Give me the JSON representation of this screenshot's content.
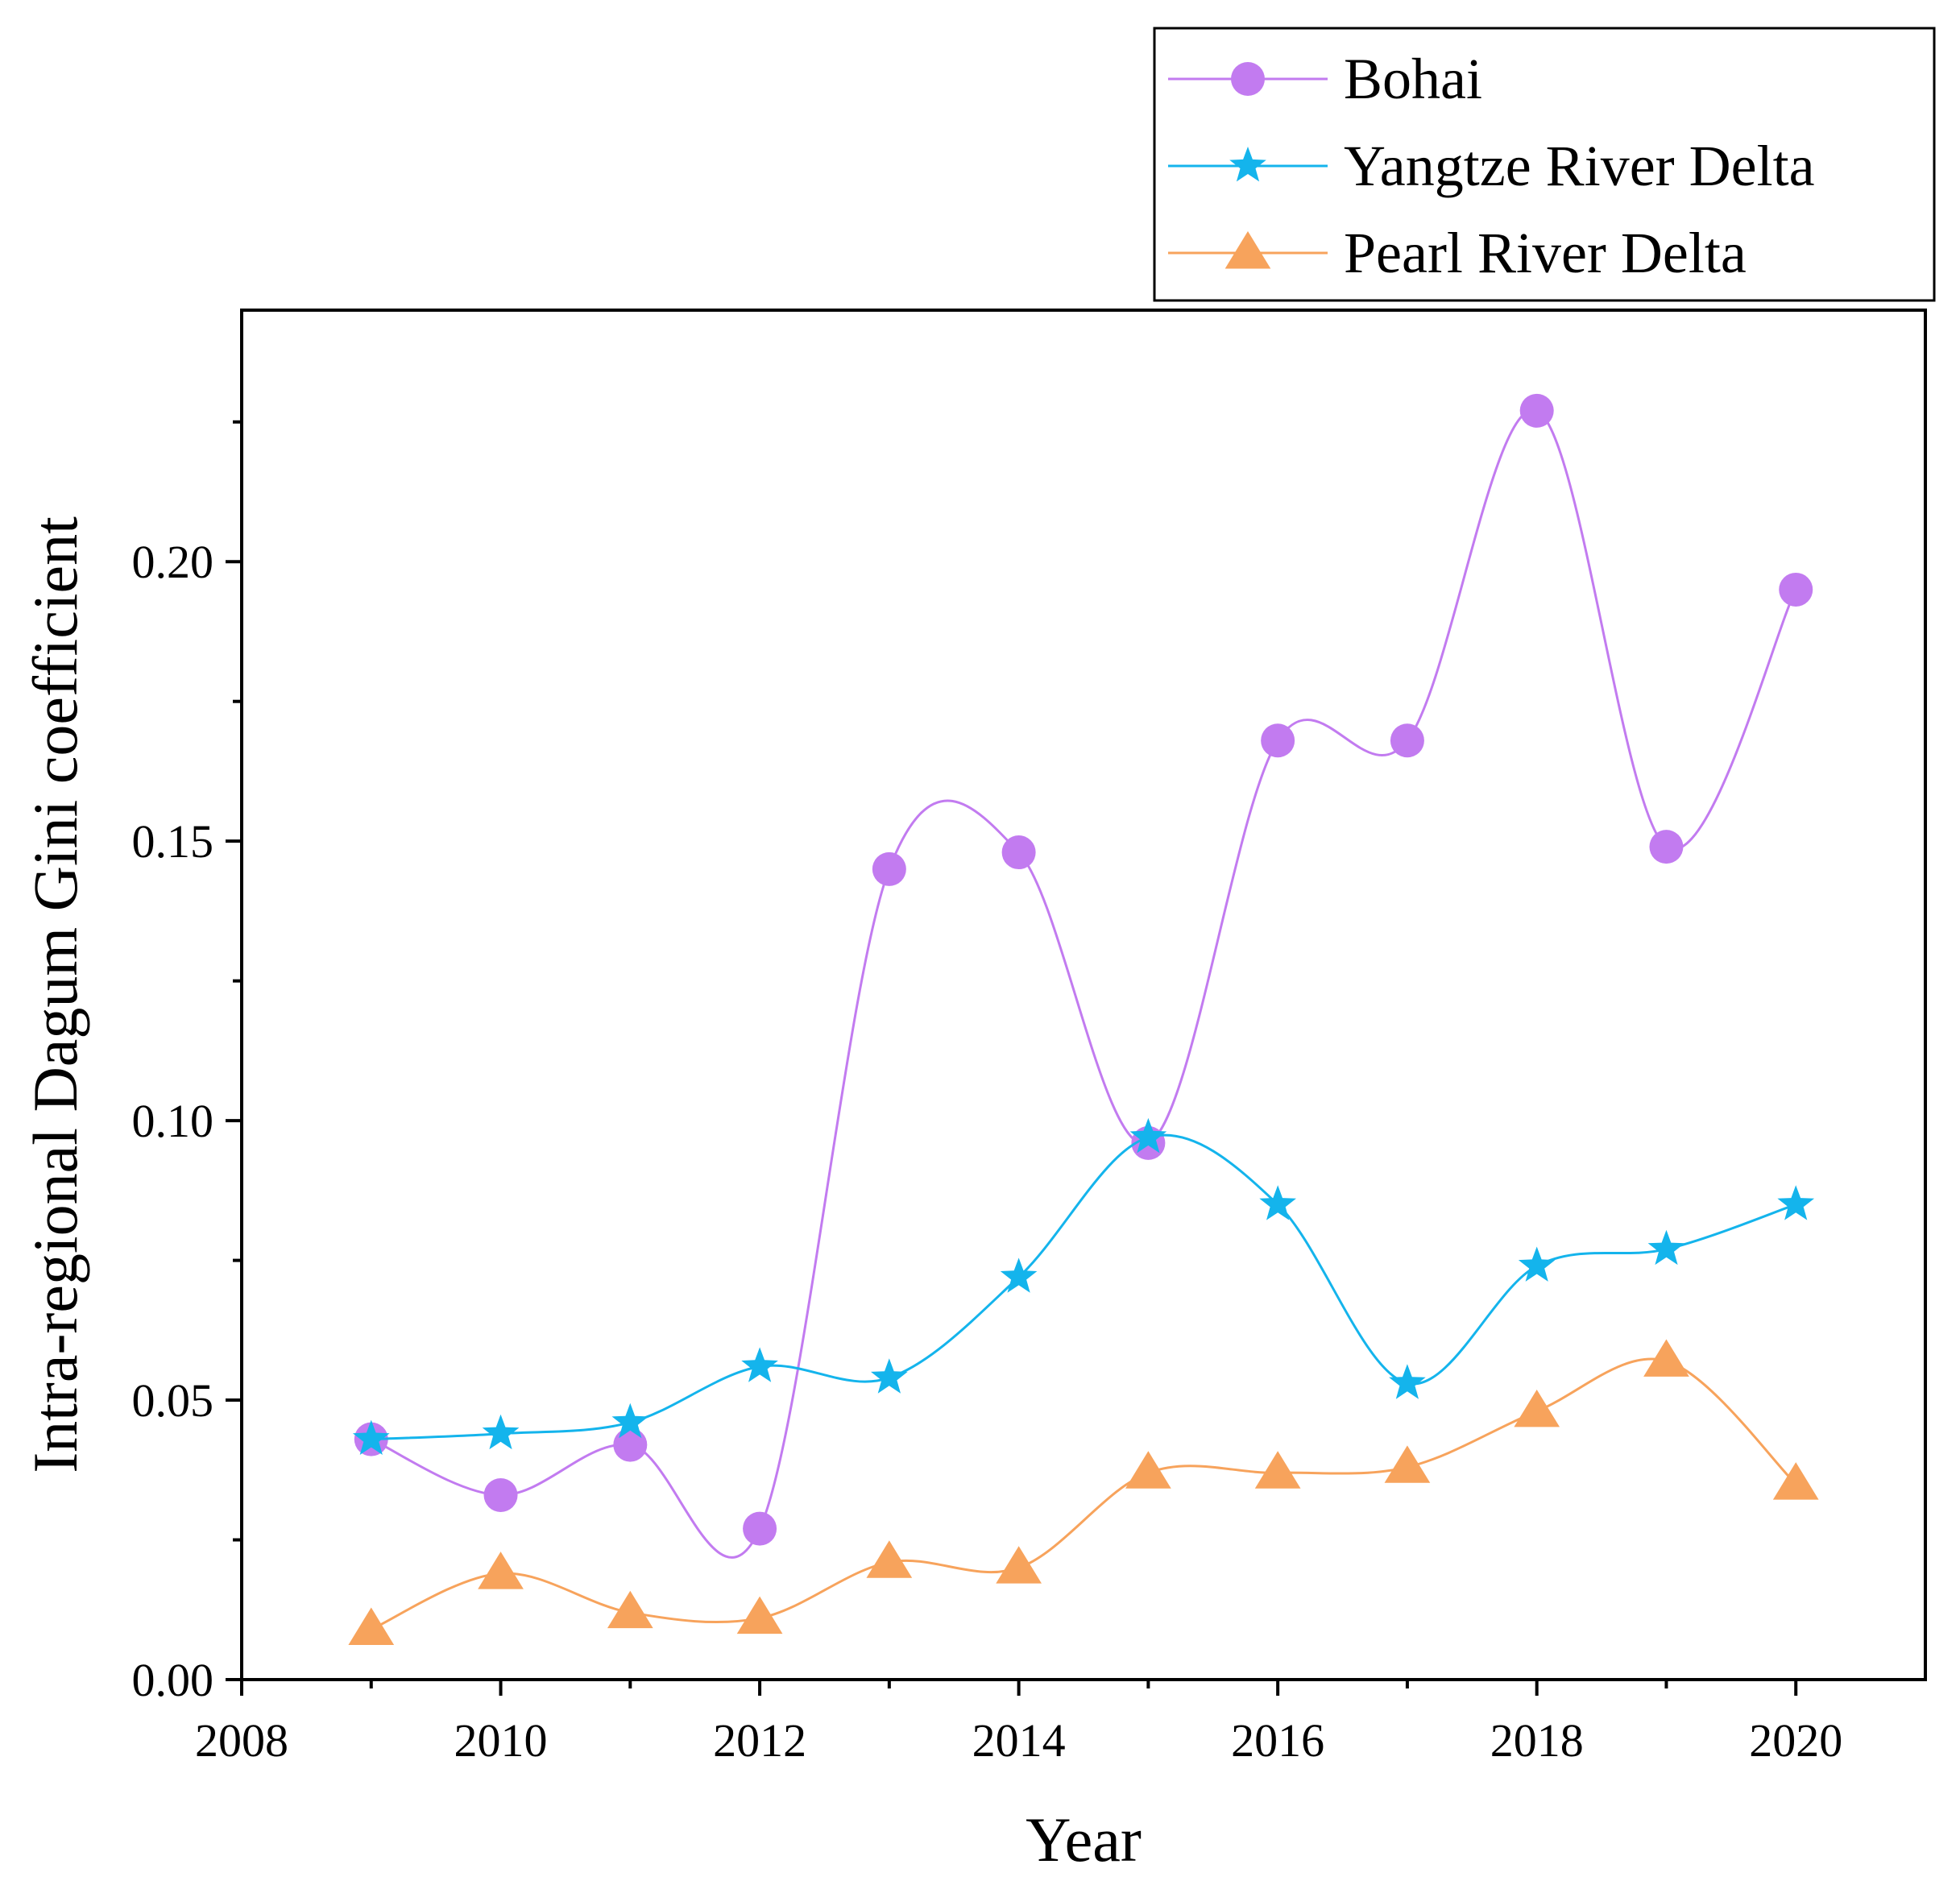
{
  "chart_data": {
    "type": "line",
    "title": "",
    "xlabel": "Year",
    "ylabel": "Intra-regional Dagum Gini coefficient",
    "xlim": [
      2008,
      2021
    ],
    "ylim": [
      0,
      0.245
    ],
    "x": [
      2009,
      2010,
      2011,
      2012,
      2013,
      2014,
      2015,
      2016,
      2017,
      2018,
      2019,
      2020
    ],
    "x_ticks": [
      "2008",
      "2010",
      "2012",
      "2014",
      "2016",
      "2018",
      "2020"
    ],
    "y_ticks": [
      "0.00",
      "0.05",
      "0.10",
      "0.15",
      "0.20"
    ],
    "legend_position": "top-right, outside above plot",
    "grid": false,
    "series": [
      {
        "name": "Bohai",
        "color": "#c27bf0",
        "marker": "circle",
        "values": [
          0.043,
          0.033,
          0.042,
          0.027,
          0.145,
          0.148,
          0.096,
          0.168,
          0.168,
          0.227,
          0.149,
          0.195
        ]
      },
      {
        "name": "Yangtze River Delta",
        "color": "#14b4ec",
        "marker": "star",
        "values": [
          0.043,
          0.044,
          0.046,
          0.056,
          0.054,
          0.072,
          0.097,
          0.085,
          0.053,
          0.074,
          0.077,
          0.085
        ]
      },
      {
        "name": "Pearl River Delta",
        "color": "#f7a35c",
        "marker": "triangle",
        "values": [
          0.009,
          0.019,
          0.012,
          0.011,
          0.021,
          0.02,
          0.037,
          0.037,
          0.038,
          0.048,
          0.057,
          0.035
        ]
      }
    ]
  }
}
